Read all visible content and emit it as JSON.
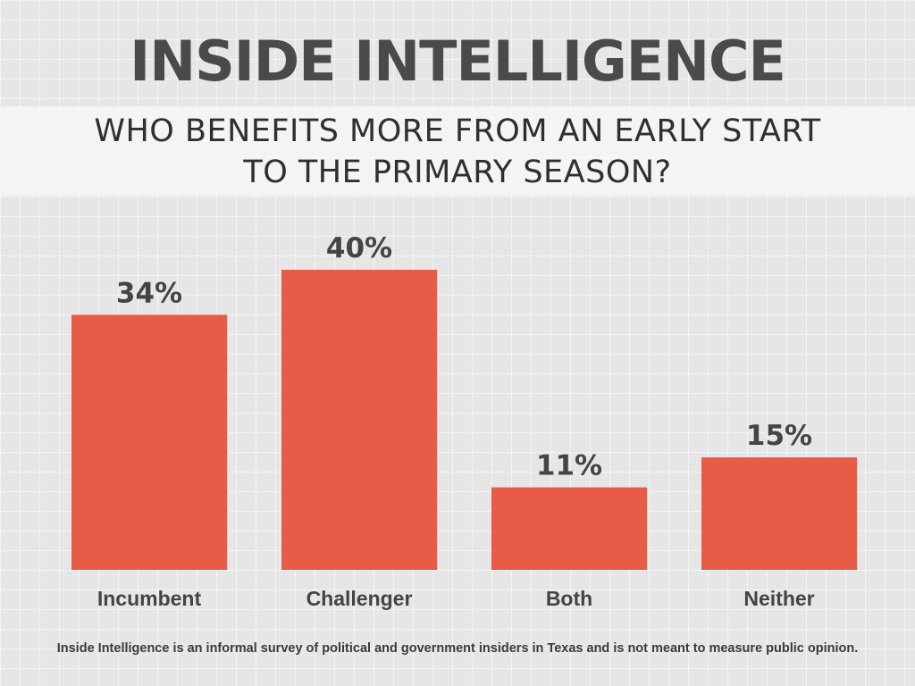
{
  "header": {
    "title": "INSIDE INTELLIGENCE"
  },
  "chart_data": {
    "type": "bar",
    "title": "WHO BENEFITS MORE FROM AN EARLY START TO THE PRIMARY SEASON?",
    "title_lines": [
      "WHO BENEFITS MORE FROM AN EARLY START",
      "TO THE PRIMARY SEASON?"
    ],
    "categories": [
      "Incumbent",
      "Challenger",
      "Both",
      "Neither"
    ],
    "values": [
      34,
      40,
      11,
      15
    ],
    "data_labels": [
      "34%",
      "40%",
      "11%",
      "15%"
    ],
    "ylim": [
      0,
      100
    ],
    "grid": false,
    "colors": {
      "bar": "#e65c47",
      "label": "#444444"
    }
  },
  "footnote": "Inside Intelligence is an informal survey of political and government insiders in Texas and is not meant to measure public opinion."
}
